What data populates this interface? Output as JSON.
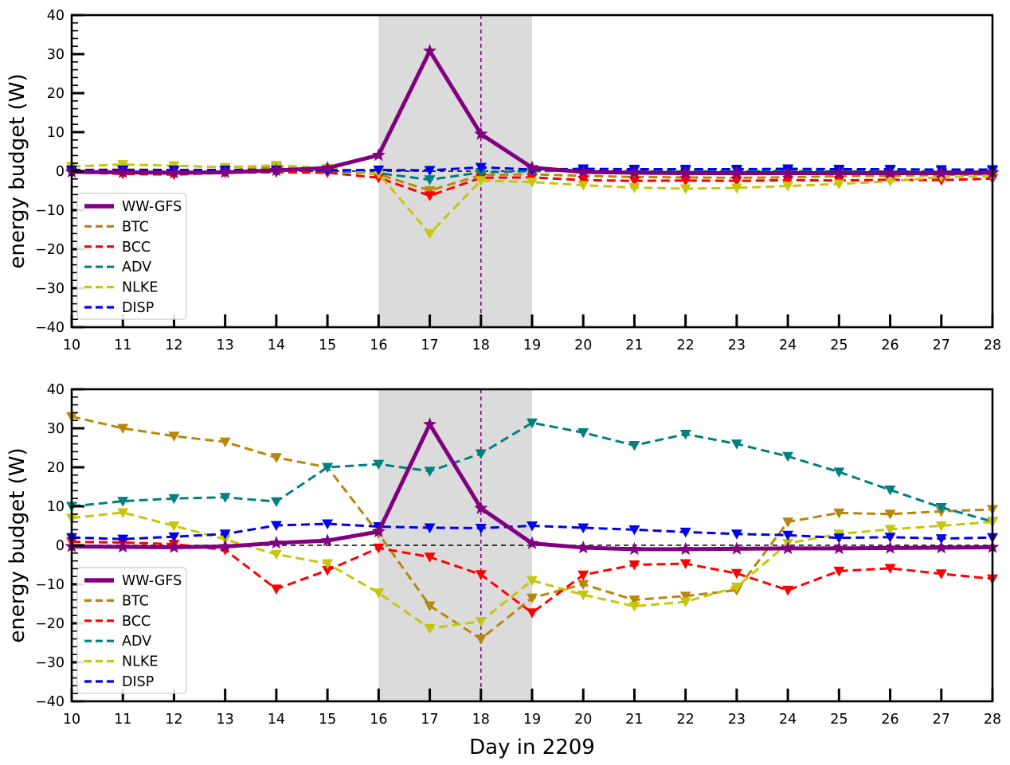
{
  "figure": {
    "background": "#ffffff",
    "xlabel": "Day in 2209",
    "ylabel": "energy budget (W)"
  },
  "chart_data": [
    {
      "type": "line",
      "panel": "top",
      "title": "",
      "xlabel": "",
      "ylabel": "energy budget (W)",
      "x": [
        10,
        11,
        12,
        13,
        14,
        15,
        16,
        17,
        18,
        19,
        20,
        21,
        22,
        23,
        24,
        25,
        26,
        27,
        28
      ],
      "xlim": [
        10,
        28
      ],
      "ylim": [
        -40,
        40
      ],
      "yticks": [
        40,
        30,
        20,
        10,
        0,
        -10,
        -20,
        -30,
        -40
      ],
      "y_minor_step": 2,
      "grid": false,
      "legend_position": "lower-left",
      "annotations": {
        "shaded_region": {
          "x_start": 16,
          "x_end": 19,
          "color": "#dbdbdb"
        },
        "vline": {
          "x": 18,
          "color": "#8b008b",
          "style": "dashed"
        },
        "hline": {
          "y": 0,
          "color": "#000000",
          "style": "dashed"
        }
      },
      "series": [
        {
          "name": "WW-GFS",
          "color": "#800080",
          "style": "solid",
          "marker": "star",
          "values": [
            -0.2,
            -0.3,
            -0.4,
            -0.3,
            0.2,
            0.8,
            4.1,
            30.8,
            9.5,
            0.9,
            -0.2,
            -0.4,
            -0.5,
            -0.5,
            -0.5,
            -0.5,
            -0.5,
            -0.5,
            -0.4
          ]
        },
        {
          "name": "BTC",
          "color": "#b8860b",
          "style": "dashed",
          "marker": "triangle-down",
          "values": [
            0.3,
            0.4,
            0.3,
            0.2,
            1.0,
            0.3,
            -0.8,
            -5.0,
            -1.0,
            -0.8,
            -1.2,
            -1.5,
            -1.6,
            -1.7,
            -1.6,
            -1.3,
            -1.2,
            -1.0,
            -0.8
          ]
        },
        {
          "name": "BCC",
          "color": "#ff0000",
          "style": "dashed",
          "marker": "triangle-down",
          "values": [
            -0.3,
            -0.7,
            -0.9,
            -0.4,
            -0.3,
            -0.4,
            -1.7,
            -6.3,
            -1.7,
            -1.6,
            -2.3,
            -2.5,
            -2.4,
            -2.5,
            -2.3,
            -2.4,
            -2.2,
            -2.3,
            -1.9
          ]
        },
        {
          "name": "ADV",
          "color": "#008080",
          "style": "dashed",
          "marker": "triangle-down",
          "values": [
            0.1,
            0.1,
            0.1,
            0.1,
            0.1,
            0.1,
            -0.5,
            -2.2,
            -0.3,
            0.0,
            0.1,
            0.1,
            0.1,
            0.1,
            0.1,
            0.1,
            0.1,
            0.1,
            0.1
          ]
        },
        {
          "name": "NLKE",
          "color": "#c6c60a",
          "style": "dashed",
          "marker": "triangle-down",
          "values": [
            1.2,
            1.7,
            1.4,
            1.0,
            1.5,
            0.8,
            -0.7,
            -16.0,
            -2.4,
            -2.8,
            -3.6,
            -4.2,
            -4.5,
            -4.3,
            -3.8,
            -3.3,
            -2.6,
            -1.5,
            -1.3
          ]
        },
        {
          "name": "DISP",
          "color": "#0000ee",
          "style": "dashed",
          "marker": "triangle-down",
          "values": [
            0.3,
            0.3,
            0.3,
            0.3,
            0.3,
            0.2,
            0.3,
            0.2,
            1.0,
            0.4,
            0.6,
            0.5,
            0.5,
            0.5,
            0.6,
            0.5,
            0.5,
            0.4,
            0.4
          ]
        }
      ]
    },
    {
      "type": "line",
      "panel": "bottom",
      "title": "",
      "xlabel": "Day in 2209",
      "ylabel": "energy budget (W)",
      "x": [
        10,
        11,
        12,
        13,
        14,
        15,
        16,
        17,
        18,
        19,
        20,
        21,
        22,
        23,
        24,
        25,
        26,
        27,
        28
      ],
      "xlim": [
        10,
        28
      ],
      "ylim": [
        -40,
        40
      ],
      "yticks": [
        40,
        30,
        20,
        10,
        0,
        -10,
        -20,
        -30,
        -40
      ],
      "y_minor_step": 2,
      "grid": false,
      "legend_position": "lower-left",
      "annotations": {
        "shaded_region": {
          "x_start": 16,
          "x_end": 19,
          "color": "#dbdbdb"
        },
        "vline": {
          "x": 18,
          "color": "#8b008b",
          "style": "dashed"
        },
        "hline": {
          "y": 0,
          "color": "#000000",
          "style": "dashed"
        }
      },
      "series": [
        {
          "name": "WW-GFS",
          "color": "#800080",
          "style": "solid",
          "marker": "star",
          "values": [
            -0.3,
            -0.4,
            -0.5,
            -0.3,
            0.6,
            1.2,
            3.5,
            31.0,
            9.5,
            0.5,
            -0.6,
            -1.0,
            -1.0,
            -0.9,
            -0.8,
            -0.8,
            -0.7,
            -0.6,
            -0.5
          ]
        },
        {
          "name": "BTC",
          "color": "#b8860b",
          "style": "dashed",
          "marker": "triangle-down",
          "values": [
            33.0,
            30.0,
            28.0,
            26.5,
            22.5,
            20.0,
            3.0,
            -15.5,
            -24.0,
            -13.5,
            -10.0,
            -14.0,
            -13.0,
            -11.5,
            6.0,
            8.3,
            8.0,
            8.7,
            9.2
          ]
        },
        {
          "name": "BCC",
          "color": "#ff0000",
          "style": "dashed",
          "marker": "triangle-down",
          "values": [
            0.9,
            0.7,
            0.3,
            -1.2,
            -11.2,
            -6.4,
            -0.7,
            -3.0,
            -7.5,
            -17.3,
            -7.6,
            -5.0,
            -4.7,
            -7.2,
            -11.5,
            -6.6,
            -5.9,
            -7.3,
            -8.6
          ]
        },
        {
          "name": "ADV",
          "color": "#008080",
          "style": "dashed",
          "marker": "triangle-down",
          "values": [
            10.0,
            11.3,
            12.0,
            12.3,
            11.2,
            20.0,
            20.8,
            19.0,
            23.5,
            31.4,
            28.9,
            25.6,
            28.5,
            26.0,
            22.8,
            18.8,
            14.2,
            9.7,
            6.1
          ]
        },
        {
          "name": "NLKE",
          "color": "#c6c60a",
          "style": "dashed",
          "marker": "triangle-down",
          "values": [
            7.0,
            8.4,
            5.0,
            1.5,
            -2.3,
            -4.7,
            -12.2,
            -21.3,
            -19.5,
            -9.0,
            -12.7,
            -15.6,
            -14.5,
            -10.7,
            0.5,
            2.9,
            4.1,
            5.0,
            6.0
          ]
        },
        {
          "name": "DISP",
          "color": "#0000ee",
          "style": "dashed",
          "marker": "triangle-down",
          "values": [
            2.0,
            1.6,
            2.2,
            2.9,
            5.1,
            5.5,
            4.8,
            4.5,
            4.4,
            5.0,
            4.5,
            4.0,
            3.4,
            2.9,
            2.6,
            1.9,
            2.1,
            1.7,
            2.0
          ]
        }
      ]
    }
  ],
  "legend": {
    "entries": [
      "WW-GFS",
      "BTC",
      "BCC",
      "ADV",
      "NLKE",
      "DISP"
    ]
  }
}
